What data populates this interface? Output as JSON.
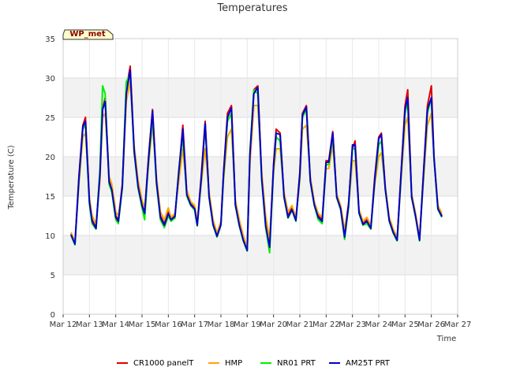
{
  "chart_data": {
    "type": "line",
    "title": "Temperatures",
    "xlabel": "Time",
    "ylabel": "Temperature (C)",
    "badge": "WP_met",
    "ylim": [
      0,
      35
    ],
    "yticks": [
      0,
      5,
      10,
      15,
      20,
      25,
      30,
      35
    ],
    "xlim": [
      0,
      15
    ],
    "xticks": [
      {
        "value": 0,
        "label": "Mar 12"
      },
      {
        "value": 1,
        "label": "Mar 13"
      },
      {
        "value": 2,
        "label": "Mar 14"
      },
      {
        "value": 3,
        "label": "Mar 15"
      },
      {
        "value": 4,
        "label": "Mar 16"
      },
      {
        "value": 5,
        "label": "Mar 17"
      },
      {
        "value": 6,
        "label": "Mar 18"
      },
      {
        "value": 7,
        "label": "Mar 19"
      },
      {
        "value": 8,
        "label": "Mar 20"
      },
      {
        "value": 9,
        "label": "Mar 21"
      },
      {
        "value": 10,
        "label": "Mar 22"
      },
      {
        "value": 11,
        "label": "Mar 23"
      },
      {
        "value": 12,
        "label": "Mar 24"
      },
      {
        "value": 13,
        "label": "Mar 25"
      },
      {
        "value": 14,
        "label": "Mar 26"
      },
      {
        "value": 15,
        "label": "Mar 27"
      }
    ],
    "x": [
      0.3,
      0.45,
      0.6,
      0.75,
      0.85,
      1.0,
      1.1,
      1.25,
      1.4,
      1.5,
      1.6,
      1.75,
      1.85,
      2.0,
      2.1,
      2.25,
      2.4,
      2.55,
      2.7,
      2.85,
      3.0,
      3.1,
      3.25,
      3.4,
      3.55,
      3.7,
      3.85,
      4.0,
      4.1,
      4.25,
      4.4,
      4.55,
      4.7,
      4.85,
      5.0,
      5.1,
      5.25,
      5.4,
      5.55,
      5.7,
      5.85,
      6.0,
      6.1,
      6.25,
      6.4,
      6.55,
      6.7,
      6.85,
      7.0,
      7.1,
      7.25,
      7.4,
      7.55,
      7.7,
      7.85,
      8.0,
      8.1,
      8.25,
      8.4,
      8.55,
      8.7,
      8.85,
      9.0,
      9.1,
      9.25,
      9.4,
      9.55,
      9.7,
      9.85,
      10.0,
      10.1,
      10.25,
      10.4,
      10.55,
      10.7,
      10.85,
      11.0,
      11.1,
      11.25,
      11.4,
      11.55,
      11.7,
      11.85,
      12.0,
      12.1,
      12.25,
      12.4,
      12.55,
      12.7,
      12.85,
      13.0,
      13.1,
      13.25,
      13.4,
      13.55,
      13.7,
      13.85,
      14.0,
      14.1,
      14.25,
      14.4
    ],
    "series": [
      {
        "name": "CR1000 panelT",
        "color": "#dd0000",
        "values": [
          10.2,
          9.0,
          17.5,
          24.0,
          25.0,
          14.5,
          12.0,
          11.0,
          18.0,
          26.0,
          27.5,
          17.0,
          16.0,
          12.5,
          12.0,
          16.5,
          28.5,
          31.5,
          21.0,
          16.5,
          14.0,
          13.0,
          20.0,
          26.0,
          17.0,
          12.5,
          11.5,
          13.0,
          12.0,
          12.5,
          18.0,
          24.0,
          15.5,
          14.0,
          13.5,
          11.5,
          17.5,
          24.5,
          15.0,
          11.5,
          10.0,
          11.5,
          18.0,
          25.5,
          26.5,
          14.0,
          11.5,
          9.5,
          8.2,
          20.0,
          28.5,
          29.0,
          17.5,
          11.5,
          9.0,
          19.0,
          23.5,
          23.0,
          15.0,
          12.5,
          13.5,
          12.0,
          18.0,
          25.5,
          26.5,
          17.0,
          14.0,
          12.5,
          12.0,
          19.5,
          19.5,
          23.2,
          15.0,
          13.5,
          10.5,
          14.0,
          21.0,
          22.0,
          13.0,
          11.5,
          12.0,
          11.0,
          17.5,
          22.5,
          23.0,
          16.0,
          12.0,
          10.5,
          9.5,
          18.0,
          26.5,
          28.5,
          15.0,
          12.5,
          9.5,
          18.0,
          26.5,
          29.0,
          20.0,
          13.5,
          12.5
        ]
      },
      {
        "name": "HMP",
        "color": "#ffa500",
        "values": [
          10.4,
          9.2,
          16.5,
          22.5,
          23.0,
          14.8,
          12.5,
          11.5,
          17.0,
          25.0,
          25.5,
          17.5,
          16.5,
          13.0,
          12.5,
          16.0,
          27.0,
          29.5,
          21.5,
          17.0,
          14.5,
          13.5,
          19.0,
          24.0,
          17.5,
          13.0,
          12.0,
          13.5,
          12.3,
          12.8,
          17.0,
          21.0,
          15.8,
          14.3,
          13.8,
          11.8,
          16.5,
          21.0,
          15.5,
          12.0,
          10.3,
          11.8,
          17.0,
          22.5,
          23.5,
          14.5,
          12.0,
          10.0,
          8.5,
          19.0,
          26.5,
          26.5,
          18.0,
          12.5,
          9.5,
          18.0,
          21.0,
          21.0,
          15.5,
          13.0,
          13.8,
          12.3,
          17.0,
          23.5,
          24.0,
          17.5,
          14.3,
          12.8,
          12.3,
          18.5,
          18.5,
          21.5,
          15.3,
          13.8,
          10.8,
          13.5,
          19.5,
          19.5,
          13.3,
          11.8,
          12.3,
          11.3,
          16.5,
          20.0,
          20.5,
          16.3,
          12.3,
          10.8,
          9.8,
          17.0,
          24.0,
          25.0,
          15.3,
          12.8,
          9.8,
          17.0,
          24.0,
          25.5,
          20.0,
          13.8,
          12.8
        ]
      },
      {
        "name": "NR01 PRT",
        "color": "#00ee00",
        "values": [
          10.0,
          8.8,
          17.0,
          23.5,
          24.0,
          14.0,
          11.5,
          10.8,
          18.5,
          29.0,
          28.0,
          16.5,
          15.5,
          12.0,
          11.5,
          16.0,
          29.5,
          30.5,
          20.5,
          16.0,
          13.5,
          12.0,
          19.5,
          25.0,
          16.5,
          12.0,
          11.0,
          12.5,
          11.8,
          12.2,
          18.5,
          22.5,
          15.0,
          13.8,
          13.2,
          11.2,
          17.0,
          24.0,
          14.8,
          11.3,
          9.8,
          11.3,
          17.5,
          24.5,
          25.5,
          13.8,
          11.2,
          9.3,
          8.0,
          20.5,
          28.5,
          28.0,
          17.0,
          11.0,
          7.8,
          18.5,
          22.5,
          22.0,
          14.8,
          12.2,
          13.2,
          11.8,
          17.5,
          25.0,
          26.0,
          16.8,
          13.8,
          12.0,
          11.5,
          19.0,
          19.0,
          22.5,
          14.8,
          13.3,
          9.5,
          13.5,
          21.0,
          21.0,
          12.8,
          11.3,
          11.5,
          10.8,
          17.0,
          21.5,
          22.0,
          15.8,
          11.8,
          10.3,
          9.3,
          17.5,
          25.5,
          27.0,
          14.8,
          12.3,
          9.3,
          17.5,
          25.5,
          27.5,
          19.8,
          13.3,
          12.3
        ]
      },
      {
        "name": "AM25T PRT",
        "color": "#0000cc",
        "values": [
          10.1,
          8.9,
          17.2,
          23.8,
          24.5,
          14.3,
          11.8,
          10.9,
          17.8,
          26.0,
          27.0,
          16.8,
          15.8,
          12.3,
          11.8,
          16.2,
          28.0,
          31.0,
          20.8,
          16.2,
          13.8,
          12.8,
          19.8,
          25.8,
          16.8,
          12.3,
          11.3,
          12.8,
          12.0,
          12.4,
          18.2,
          23.5,
          15.2,
          13.9,
          13.4,
          11.3,
          17.2,
          24.2,
          14.9,
          11.4,
          9.9,
          11.4,
          17.8,
          25.0,
          26.2,
          13.9,
          11.3,
          9.4,
          8.1,
          20.2,
          28.0,
          28.8,
          17.2,
          11.2,
          8.5,
          18.8,
          23.0,
          22.8,
          14.9,
          12.3,
          13.3,
          11.9,
          17.8,
          25.3,
          26.3,
          16.9,
          13.9,
          12.3,
          11.8,
          19.3,
          19.3,
          23.0,
          14.9,
          13.4,
          9.8,
          13.8,
          21.5,
          21.5,
          12.9,
          11.4,
          11.8,
          10.9,
          17.2,
          22.3,
          22.8,
          15.9,
          11.9,
          10.4,
          9.4,
          17.8,
          26.0,
          27.5,
          14.9,
          12.4,
          9.4,
          17.8,
          26.0,
          27.5,
          19.9,
          13.4,
          12.4
        ]
      }
    ]
  },
  "legend": [
    {
      "label": "CR1000 panelT",
      "color": "#dd0000"
    },
    {
      "label": "HMP",
      "color": "#ffa500"
    },
    {
      "label": "NR01 PRT",
      "color": "#00ee00"
    },
    {
      "label": "AM25T PRT",
      "color": "#0000cc"
    }
  ]
}
